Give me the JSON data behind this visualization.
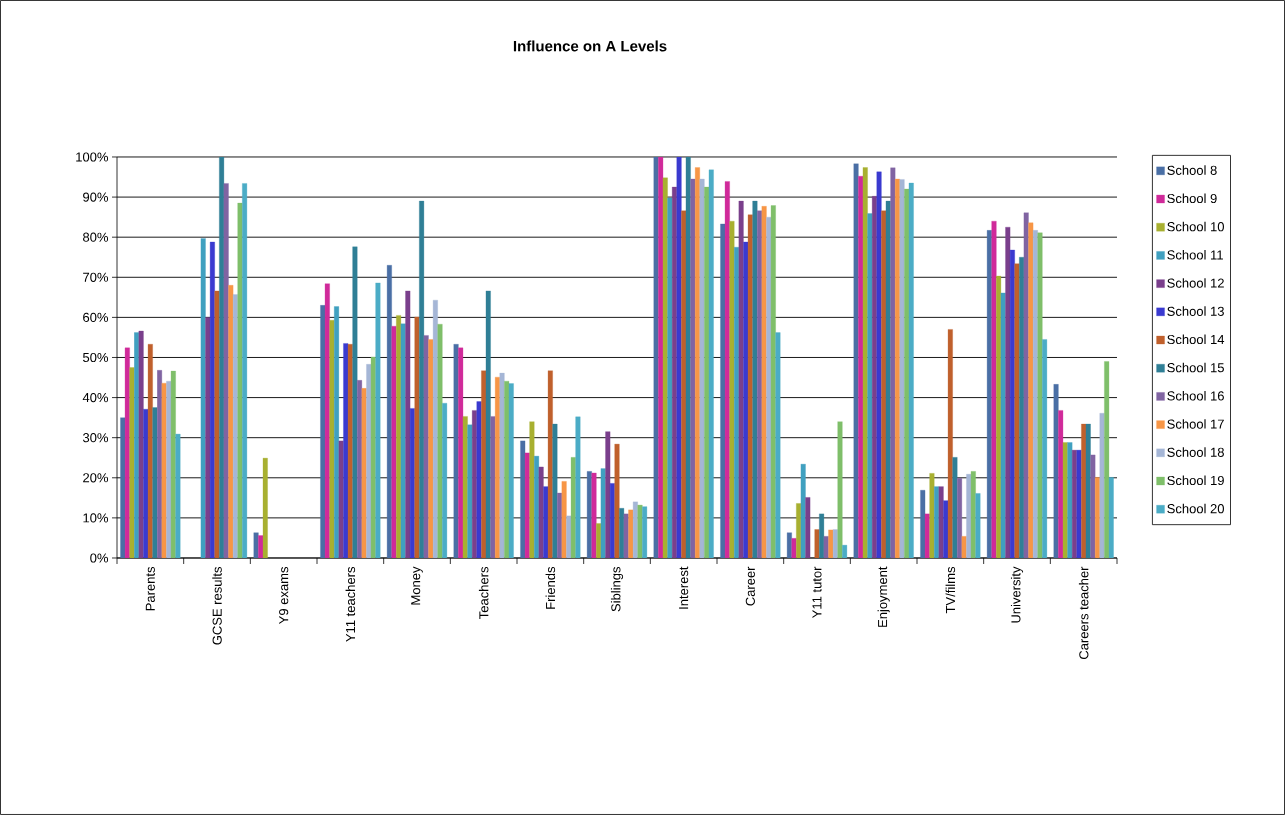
{
  "chart_data": {
    "type": "bar",
    "title": "Influence on A Levels",
    "categories": [
      "Parents",
      "GCSE results",
      "Y9 exams",
      "Y11 teachers",
      "Money",
      "Teachers",
      "Friends",
      "Siblings",
      "Interest",
      "Career",
      "Y11 tutor",
      "Enjoyment",
      "TV/films",
      "University",
      "Careers teacher"
    ],
    "ylim": [
      0,
      100
    ],
    "yticks": [
      {
        "value": 0,
        "label": "0%"
      },
      {
        "value": 10,
        "label": "10%"
      },
      {
        "value": 20,
        "label": "20%"
      },
      {
        "value": 30,
        "label": "30%"
      },
      {
        "value": 40,
        "label": "40%"
      },
      {
        "value": 50,
        "label": "50%"
      },
      {
        "value": 60,
        "label": "60%"
      },
      {
        "value": 70,
        "label": "70%"
      },
      {
        "value": 80,
        "label": "80%"
      },
      {
        "value": 90,
        "label": "90%"
      },
      {
        "value": 100,
        "label": "100%"
      }
    ],
    "grid": "y",
    "legend": "right",
    "series": [
      {
        "name": "School 8",
        "color": "#4a6fa5",
        "values": [
          35,
          null,
          6.3,
          63,
          73,
          53.3,
          29.2,
          21.6,
          100,
          83.3,
          6.3,
          98.3,
          16.9,
          81.7,
          43.3
        ]
      },
      {
        "name": "School 9",
        "color": "#d02a9a",
        "values": [
          52.4,
          null,
          5.6,
          68.4,
          57.8,
          52.4,
          26.2,
          21.2,
          100,
          93.9,
          4.9,
          95.2,
          11,
          84,
          36.8
        ]
      },
      {
        "name": "School 10",
        "color": "#a8b030",
        "values": [
          47.5,
          null,
          24.9,
          59.3,
          60.5,
          35.3,
          34,
          8.6,
          94.8,
          84,
          13.6,
          97.4,
          21.1,
          70.3,
          28.8
        ]
      },
      {
        "name": "School 11",
        "color": "#40a0c0",
        "values": [
          56.2,
          79.7,
          null,
          62.7,
          58.4,
          33.2,
          25.4,
          22.3,
          89.8,
          77.5,
          23.4,
          85.9,
          17.8,
          66.1,
          28.8
        ]
      },
      {
        "name": "School 12",
        "color": "#7a3f8c",
        "values": [
          56.6,
          60,
          null,
          29.2,
          66.6,
          36.8,
          22.7,
          31.5,
          92.5,
          89,
          15.1,
          90.2,
          17.8,
          82.5,
          26.9
        ]
      },
      {
        "name": "School 13",
        "color": "#3a3ad0",
        "values": [
          37.1,
          78.8,
          null,
          53.5,
          37.3,
          39,
          17.8,
          18.6,
          100,
          78.8,
          null,
          96.3,
          14.3,
          76.8,
          26.9
        ]
      },
      {
        "name": "School 14",
        "color": "#c0602c",
        "values": [
          53.3,
          66.6,
          null,
          53.3,
          60.1,
          46.7,
          46.7,
          28.4,
          86.6,
          85.6,
          7.1,
          86.6,
          57,
          73.4,
          33.4
        ]
      },
      {
        "name": "School 15",
        "color": "#2f7f96",
        "values": [
          37.5,
          100,
          null,
          77.6,
          89,
          66.6,
          33.4,
          12.4,
          100,
          89,
          11,
          89,
          25.1,
          75,
          33.4
        ]
      },
      {
        "name": "School 16",
        "color": "#8064a2",
        "values": [
          46.8,
          93.4,
          null,
          44.3,
          55.5,
          35.3,
          16.2,
          11,
          94.5,
          86.6,
          5.4,
          97.3,
          19.9,
          86.1,
          25.7
        ]
      },
      {
        "name": "School 17",
        "color": "#f79646",
        "values": [
          43.6,
          68,
          null,
          42.3,
          54.5,
          45.1,
          19.1,
          12,
          97.4,
          87.7,
          7,
          94.5,
          5.4,
          83.6,
          20.1
        ]
      },
      {
        "name": "School 18",
        "color": "#a5b6d6",
        "values": [
          44.1,
          65.7,
          null,
          48.3,
          64.3,
          46.1,
          10.5,
          14,
          94.5,
          85,
          7.1,
          94.4,
          20.9,
          81.7,
          36.1
        ]
      },
      {
        "name": "School 19",
        "color": "#7fbf6a",
        "values": [
          46.6,
          88.5,
          null,
          50.1,
          58.3,
          44.1,
          25.1,
          13.2,
          92.5,
          87.9,
          34,
          92,
          21.6,
          81.1,
          49
        ]
      },
      {
        "name": "School 20",
        "color": "#4bacc6",
        "values": [
          30.9,
          93.4,
          null,
          68.6,
          38.6,
          43.5,
          35.2,
          12.8,
          96.8,
          56.2,
          3.2,
          93.5,
          16.1,
          54.5,
          20.1
        ]
      }
    ]
  }
}
